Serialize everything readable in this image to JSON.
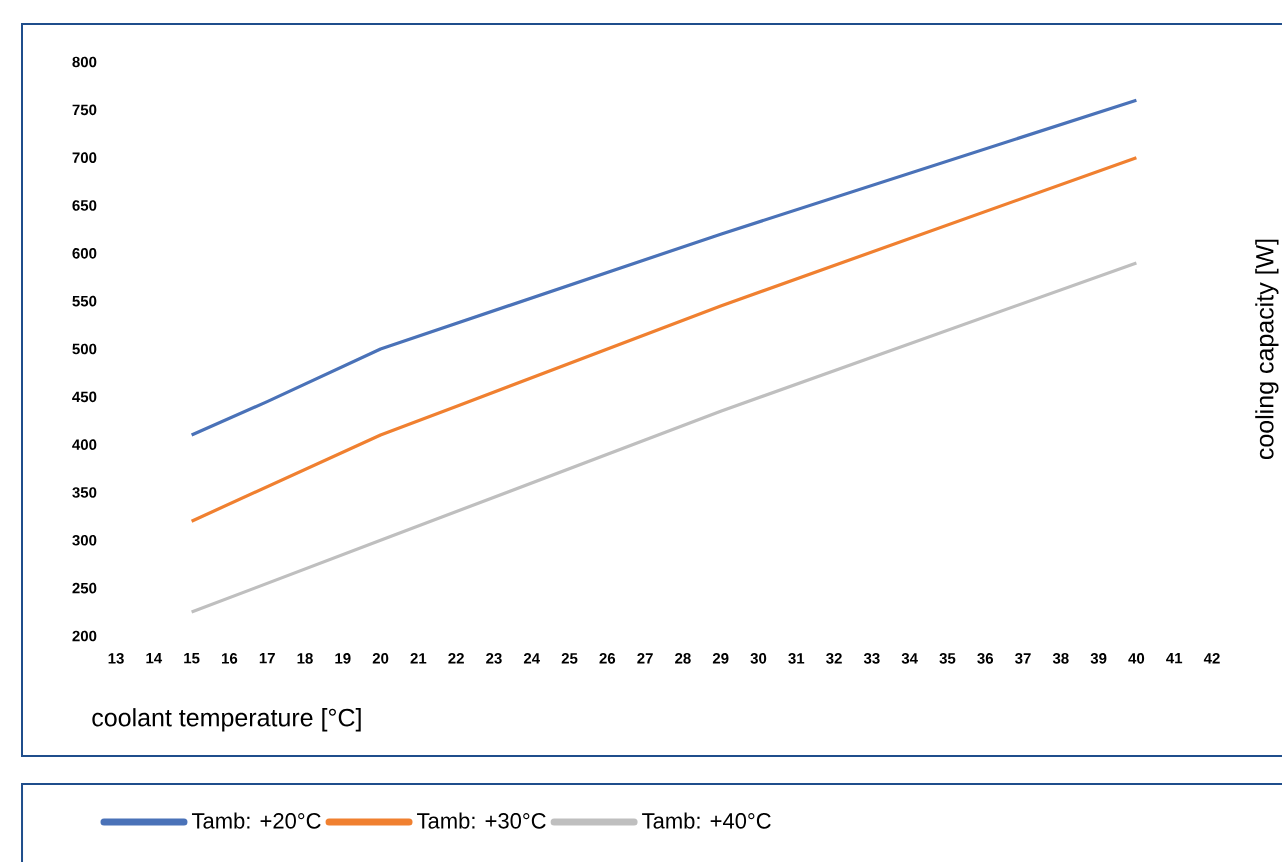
{
  "chart_data": {
    "type": "line",
    "xlabel": "coolant temperature [°C]",
    "ylabel": "cooling capacity [W]",
    "xlim": [
      13,
      42
    ],
    "xticks": [
      13,
      14,
      15,
      16,
      17,
      18,
      19,
      20,
      21,
      22,
      23,
      24,
      25,
      26,
      27,
      28,
      29,
      30,
      31,
      32,
      33,
      34,
      35,
      36,
      37,
      38,
      39,
      40,
      41,
      42
    ],
    "ylim": [
      200,
      800
    ],
    "yticks": [
      200,
      250,
      300,
      350,
      400,
      450,
      500,
      550,
      600,
      650,
      700,
      750,
      800
    ],
    "grid": false,
    "legend": "bottom",
    "marker": "none",
    "line_style": "solid",
    "series": [
      {
        "name": "Tamb: +20°C",
        "color": "#4a72b8",
        "x": [
          15,
          17,
          20,
          29,
          40
        ],
        "values": [
          410,
          445,
          500,
          620,
          760
        ]
      },
      {
        "name": "Tamb: +30°C",
        "color": "#f08030",
        "x": [
          15,
          20,
          22,
          29,
          40
        ],
        "values": [
          320,
          410,
          440,
          545,
          700
        ]
      },
      {
        "name": "Tamb: +40°C",
        "color": "#bfbfbf",
        "x": [
          15,
          20,
          29,
          40
        ],
        "values": [
          225,
          300,
          435,
          590
        ]
      }
    ]
  }
}
